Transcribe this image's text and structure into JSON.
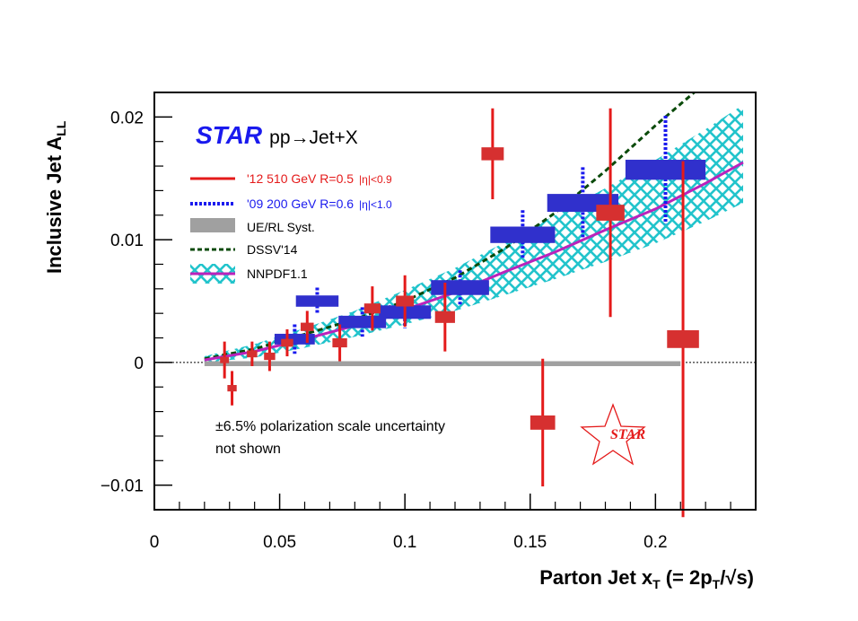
{
  "chart_data": {
    "type": "scatter",
    "xlabel": "Parton Jet x",
    "xlabel_sub": "T",
    "xlabel_formula_a": "(= 2p",
    "xlabel_formula_sub": "T",
    "xlabel_formula_b": "/",
    "xlabel_formula_c": "s)",
    "ylabel": "Inclusive Jet A",
    "ylabel_sub": "LL",
    "xlim": [
      0,
      0.24
    ],
    "ylim": [
      -0.012,
      0.022
    ],
    "x_ticks": [
      0,
      0.05,
      0.1,
      0.15,
      0.2
    ],
    "x_tick_labels": [
      "0",
      "0.05",
      "0.1",
      "0.15",
      "0.2"
    ],
    "y_ticks": [
      -0.01,
      0,
      0.01,
      0.02
    ],
    "y_tick_labels": [
      "−0.01",
      "0",
      "0.01",
      "0.02"
    ],
    "experiment_label": "STAR",
    "process_label": "pp→Jet+X",
    "legend": {
      "placement": "top-left",
      "entries": [
        {
          "label": "'12 510 GeV R=0.5",
          "extra": "|η|<0.9",
          "style": "solid-red"
        },
        {
          "label": "'09 200 GeV R=0.6",
          "extra": "|η|<1.0",
          "style": "dotted-blue"
        },
        {
          "label": "UE/RL Syst.",
          "style": "gray-band"
        },
        {
          "label": "DSSV'14",
          "style": "dashed-green"
        },
        {
          "label": "NNPDF1.1",
          "style": "hatched-band-magenta"
        }
      ]
    },
    "note": [
      "±6.5% polarization scale uncertainty",
      "not shown"
    ],
    "logo_text": "STAR",
    "colors": {
      "red": "#e41a1a",
      "red_box": "#d63030",
      "blue": "#1a1aee",
      "blue_box": "#3030cc",
      "gray": "#a0a0a0",
      "green": "#0a4a0a",
      "cyan": "#22c4cc",
      "magenta": "#bb22bb"
    },
    "series": [
      {
        "name": "'12 510 GeV R=0.5 |η|<0.9",
        "points": [
          {
            "x": 0.028,
            "y": 0.0002,
            "err": 0.0015
          },
          {
            "x": 0.031,
            "y": -0.0021,
            "err": 0.0014
          },
          {
            "x": 0.039,
            "y": 0.0007,
            "err": 0.001
          },
          {
            "x": 0.046,
            "y": 0.0005,
            "err": 0.0012
          },
          {
            "x": 0.053,
            "y": 0.0016,
            "err": 0.0011
          },
          {
            "x": 0.061,
            "y": 0.0029,
            "err": 0.0013
          },
          {
            "x": 0.074,
            "y": 0.0016,
            "err": 0.0015
          },
          {
            "x": 0.087,
            "y": 0.0044,
            "err": 0.0018
          },
          {
            "x": 0.1,
            "y": 0.005,
            "err": 0.0021
          },
          {
            "x": 0.116,
            "y": 0.0037,
            "err": 0.0028
          },
          {
            "x": 0.135,
            "y": 0.017,
            "err": 0.0037
          },
          {
            "x": 0.155,
            "y": -0.0049,
            "err": 0.0052
          },
          {
            "x": 0.182,
            "y": 0.0122,
            "err": 0.0085
          },
          {
            "x": 0.211,
            "y": 0.0019,
            "err": 0.0145
          }
        ]
      },
      {
        "name": "'09 200 GeV R=0.6 |η|<1.0",
        "points": [
          {
            "x": 0.056,
            "y": 0.0019,
            "err": 0.0012
          },
          {
            "x": 0.065,
            "y": 0.005,
            "err": 0.0011
          },
          {
            "x": 0.083,
            "y": 0.0033,
            "err": 0.0012
          },
          {
            "x": 0.1,
            "y": 0.0041,
            "err": 0.0013
          },
          {
            "x": 0.122,
            "y": 0.0061,
            "err": 0.0014
          },
          {
            "x": 0.147,
            "y": 0.0104,
            "err": 0.002
          },
          {
            "x": 0.171,
            "y": 0.013,
            "err": 0.0029
          },
          {
            "x": 0.204,
            "y": 0.0157,
            "err": 0.0044
          }
        ]
      }
    ],
    "ue_rl_syst": {
      "x": [
        0.02,
        0.21
      ],
      "y_low": -0.0003,
      "y_high": 0.0001
    },
    "dssv14": {
      "x": [
        0.02,
        0.04,
        0.06,
        0.08,
        0.1,
        0.12,
        0.14,
        0.16,
        0.18,
        0.2,
        0.22
      ],
      "y": [
        0.0003,
        0.0011,
        0.0023,
        0.0035,
        0.005,
        0.0069,
        0.0093,
        0.0122,
        0.0156,
        0.0193,
        0.0228
      ]
    },
    "nnpdf11": {
      "x": [
        0.02,
        0.04,
        0.06,
        0.08,
        0.1,
        0.12,
        0.14,
        0.16,
        0.18,
        0.2,
        0.22,
        0.235
      ],
      "y": [
        0.0002,
        0.0009,
        0.0019,
        0.003,
        0.0043,
        0.0057,
        0.0074,
        0.009,
        0.0108,
        0.0125,
        0.0146,
        0.0163
      ],
      "y_low": [
        0.0,
        0.0004,
        0.0012,
        0.0021,
        0.0031,
        0.0042,
        0.0055,
        0.0068,
        0.0082,
        0.0097,
        0.0115,
        0.013
      ],
      "y_high": [
        0.0005,
        0.0015,
        0.0028,
        0.0042,
        0.0059,
        0.0077,
        0.0098,
        0.012,
        0.0142,
        0.0165,
        0.019,
        0.021
      ]
    }
  }
}
